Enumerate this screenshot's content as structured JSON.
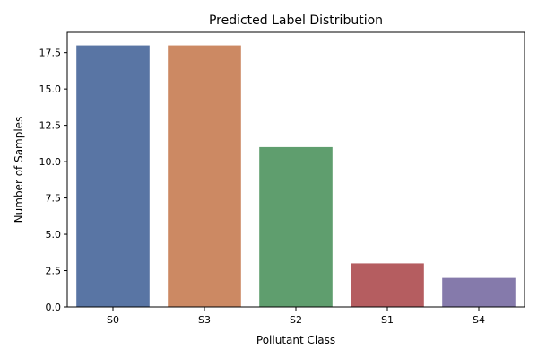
{
  "chart_data": {
    "type": "bar",
    "title": "Predicted Label Distribution",
    "xlabel": "Pollutant Class",
    "ylabel": "Number of Samples",
    "categories": [
      "S0",
      "S3",
      "S2",
      "S1",
      "S4"
    ],
    "values": [
      18,
      18,
      11,
      3,
      2
    ],
    "colors": [
      "#5975a4",
      "#cc8963",
      "#5f9e6e",
      "#b55d60",
      "#857aab"
    ],
    "ylim": [
      0,
      18.9
    ],
    "yticks": [
      0.0,
      2.5,
      5.0,
      7.5,
      10.0,
      12.5,
      15.0,
      17.5
    ],
    "ytick_labels": [
      "0.0",
      "2.5",
      "5.0",
      "7.5",
      "10.0",
      "12.5",
      "15.0",
      "17.5"
    ],
    "grid": false,
    "legend": "none"
  }
}
